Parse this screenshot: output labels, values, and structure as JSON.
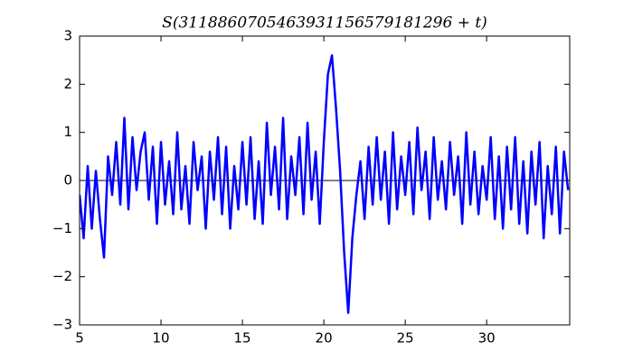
{
  "chart_data": {
    "type": "line",
    "title": "S(3118860705463931156579181296 + t)",
    "x": [
      5,
      5.25,
      5.5,
      5.75,
      6,
      6.25,
      6.5,
      6.75,
      7,
      7.25,
      7.5,
      7.75,
      8,
      8.25,
      8.5,
      8.75,
      9,
      9.25,
      9.5,
      9.75,
      10,
      10.25,
      10.5,
      10.75,
      11,
      11.25,
      11.5,
      11.75,
      12,
      12.25,
      12.5,
      12.75,
      13,
      13.25,
      13.5,
      13.75,
      14,
      14.25,
      14.5,
      14.75,
      15,
      15.25,
      15.5,
      15.75,
      16,
      16.25,
      16.5,
      16.75,
      17,
      17.25,
      17.5,
      17.75,
      18,
      18.25,
      18.5,
      18.75,
      19,
      19.25,
      19.5,
      19.75,
      20,
      20.25,
      20.5,
      20.75,
      21,
      21.25,
      21.5,
      21.75,
      22,
      22.25,
      22.5,
      22.75,
      23,
      23.25,
      23.5,
      23.75,
      24,
      24.25,
      24.5,
      24.75,
      25,
      25.25,
      25.5,
      25.75,
      26,
      26.25,
      26.5,
      26.75,
      27,
      27.25,
      27.5,
      27.75,
      28,
      28.25,
      28.5,
      28.75,
      29,
      29.25,
      29.5,
      29.75,
      30,
      30.25,
      30.5,
      30.75,
      31,
      31.25,
      31.5,
      31.75,
      32,
      32.25,
      32.5,
      32.75,
      33,
      33.25,
      33.5,
      33.75,
      34,
      34.25,
      34.5,
      34.75,
      35
    ],
    "values": [
      -0.3,
      -1.2,
      0.3,
      -1.0,
      0.2,
      -0.8,
      -1.6,
      0.5,
      -0.3,
      0.8,
      -0.5,
      1.3,
      -0.6,
      0.9,
      -0.2,
      0.6,
      1.0,
      -0.4,
      0.7,
      -0.9,
      0.8,
      -0.5,
      0.4,
      -0.7,
      1.0,
      -0.6,
      0.3,
      -0.9,
      0.8,
      -0.2,
      0.5,
      -1.0,
      0.6,
      -0.4,
      0.9,
      -0.7,
      0.7,
      -1.0,
      0.3,
      -0.6,
      0.8,
      -0.5,
      0.9,
      -0.8,
      0.4,
      -0.9,
      1.2,
      -0.3,
      0.7,
      -0.6,
      1.3,
      -0.8,
      0.5,
      -0.3,
      0.9,
      -0.7,
      1.2,
      -0.4,
      0.6,
      -0.9,
      0.8,
      2.2,
      2.6,
      1.5,
      0.2,
      -1.5,
      -2.75,
      -1.2,
      -0.3,
      0.4,
      -0.8,
      0.7,
      -0.5,
      0.9,
      -0.4,
      0.6,
      -0.9,
      1.0,
      -0.6,
      0.5,
      -0.3,
      0.8,
      -0.7,
      1.1,
      -0.2,
      0.6,
      -0.8,
      0.9,
      -0.4,
      0.4,
      -0.6,
      0.8,
      -0.3,
      0.5,
      -0.9,
      1.0,
      -0.5,
      0.6,
      -0.7,
      0.3,
      -0.4,
      0.9,
      -0.8,
      0.5,
      -1.0,
      0.7,
      -0.6,
      0.9,
      -0.9,
      0.4,
      -1.1,
      0.6,
      -0.5,
      0.8,
      -1.2,
      0.3,
      -0.7,
      0.7,
      -1.1,
      0.6,
      -0.2
    ],
    "color": "#0000ff",
    "hline": 0,
    "xlim": [
      5,
      35.1
    ],
    "xticks": [
      5,
      10,
      15,
      20,
      25,
      30
    ],
    "ylim": [
      -3,
      3
    ],
    "yticks": [
      {
        "value": -3,
        "label": "−3"
      },
      {
        "value": -2,
        "label": "−2"
      },
      {
        "value": -1,
        "label": "−1"
      },
      0,
      1,
      2,
      3
    ]
  }
}
